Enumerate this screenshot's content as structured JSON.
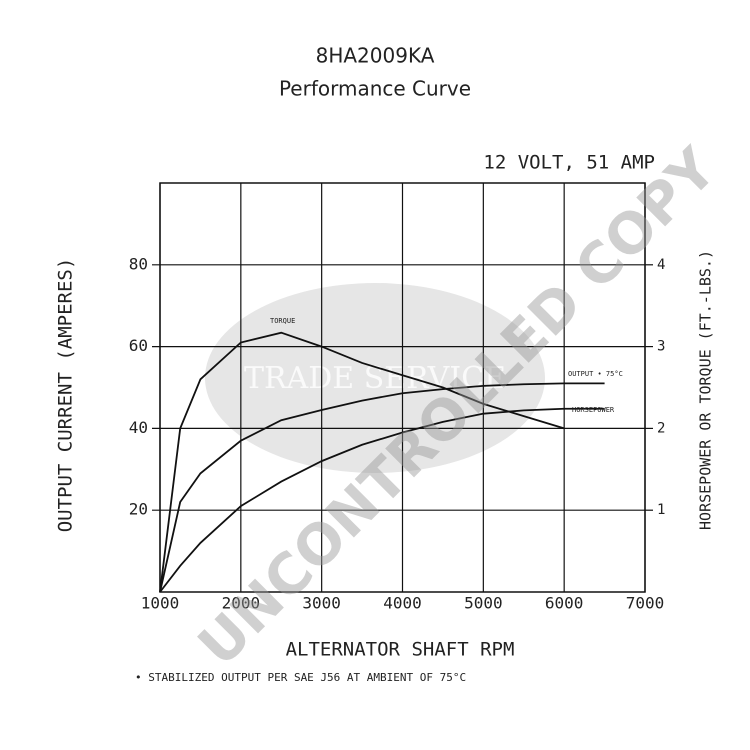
{
  "chart_data": {
    "type": "line",
    "title": "8HA2009KA",
    "subtitle": "Performance Curve",
    "annotation": "12 VOLT, 51 AMP",
    "xlabel": "ALTERNATOR SHAFT RPM",
    "ylabel": "OUTPUT CURRENT (AMPERES)",
    "y2label": "HORSEPOWER OR TORQUE (FT.-LBS.)",
    "footnote": "• STABILIZED OUTPUT PER SAE J56 AT AMBIENT OF 75°C",
    "watermarks": [
      "TRADE SERVICE",
      "UNCONTROLLED COPY"
    ],
    "x": [
      1000,
      1250,
      1500,
      2000,
      2500,
      3000,
      3500,
      4000,
      4500,
      5000,
      5500,
      6000,
      6500
    ],
    "series": [
      {
        "name": "TORQUE",
        "color": "#111111",
        "axis": "y2",
        "values": [
          0,
          2.0,
          2.6,
          3.05,
          3.17,
          3.0,
          2.8,
          2.65,
          2.5,
          2.3,
          2.15,
          2.0,
          null
        ]
      },
      {
        "name": "OUTPUT • 75°C",
        "color": "#111111",
        "values": [
          0,
          22,
          29,
          37,
          42,
          44.5,
          46.8,
          48.6,
          49.6,
          50.4,
          50.8,
          51,
          51
        ]
      },
      {
        "name": "HORSEPOWER",
        "color": "#111111",
        "axis": "y2",
        "values": [
          0,
          0.32,
          0.6,
          1.05,
          1.35,
          1.6,
          1.8,
          1.95,
          2.08,
          2.18,
          2.22,
          2.24,
          2.24
        ]
      }
    ],
    "xlim": [
      1000,
      7000
    ],
    "xticks": [
      1000,
      2000,
      3000,
      4000,
      5000,
      6000,
      7000
    ],
    "ylim": [
      0,
      100
    ],
    "yticks": [
      20,
      40,
      60,
      80
    ],
    "y2lim": [
      0,
      5
    ],
    "y2ticks": [
      1,
      2,
      3,
      4
    ],
    "grid": true
  }
}
